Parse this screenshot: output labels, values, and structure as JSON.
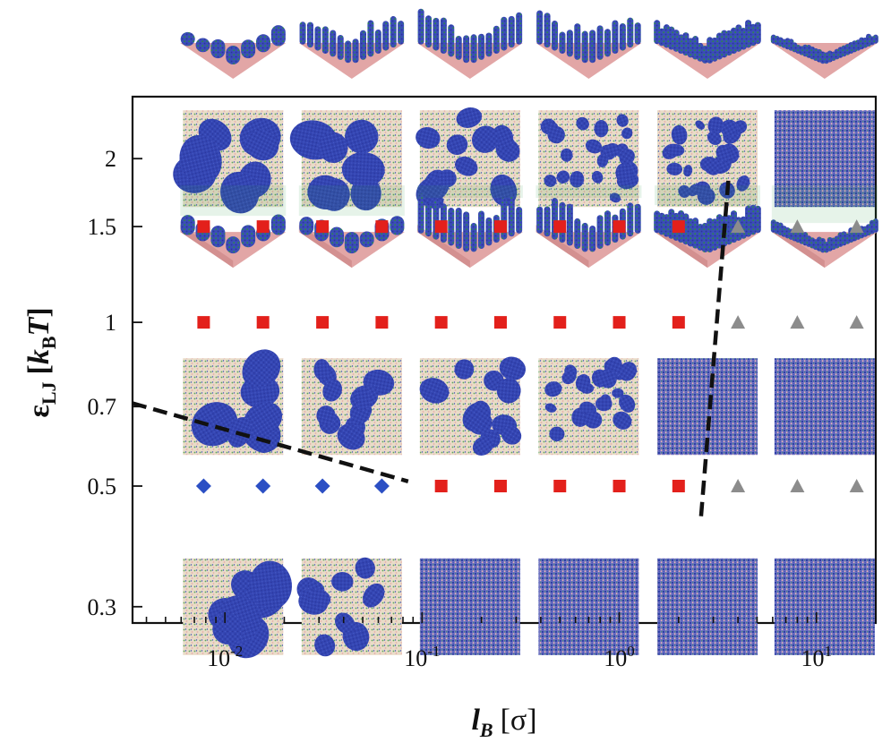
{
  "chart_data": {
    "type": "scatter",
    "title": "",
    "xlabel": "l_B [σ]",
    "xlabel_parts": {
      "main": "l",
      "sub": "B",
      "unit": "[σ]"
    },
    "ylabel": "ε_LJ [k_B T]",
    "ylabel_parts": {
      "main": "ε",
      "sub": "LJ",
      "unit_open": "[",
      "k": "k",
      "k_sub": "B",
      "T": "T",
      "unit_close": "]"
    },
    "x_scale": "log",
    "y_scale": "log",
    "xlim": [
      0.0034,
      20
    ],
    "ylim": [
      0.28,
      2.6
    ],
    "x_ticks": [
      {
        "value": 0.01,
        "base": "10",
        "exp": "-2"
      },
      {
        "value": 0.1,
        "base": "10",
        "exp": "-1"
      },
      {
        "value": 1,
        "base": "10",
        "exp": "0"
      },
      {
        "value": 10,
        "base": "10",
        "exp": "1"
      }
    ],
    "y_ticks": [
      {
        "value": 0.3,
        "label": "0.3"
      },
      {
        "value": 0.5,
        "label": "0.5"
      },
      {
        "value": 0.7,
        "label": "0.7"
      },
      {
        "value": 1,
        "label": "1"
      },
      {
        "value": 1.5,
        "label": "1.5"
      },
      {
        "value": 2,
        "label": "2"
      }
    ],
    "series": [
      {
        "marker": "diamond",
        "color": "#2b4fc4",
        "points": [
          [
            0.0078,
            0.5
          ],
          [
            0.0156,
            0.5
          ],
          [
            0.03125,
            0.5
          ],
          [
            0.0625,
            0.5
          ]
        ]
      },
      {
        "marker": "square",
        "color": "#e3201b",
        "points": [
          [
            0.0078,
            1.5
          ],
          [
            0.0156,
            1.5
          ],
          [
            0.03125,
            1.5
          ],
          [
            0.0625,
            1.5
          ],
          [
            0.125,
            1.5
          ],
          [
            0.25,
            1.5
          ],
          [
            0.5,
            1.5
          ],
          [
            1,
            1.5
          ],
          [
            2,
            1.5
          ],
          [
            0.0078,
            1
          ],
          [
            0.0156,
            1
          ],
          [
            0.03125,
            1
          ],
          [
            0.0625,
            1
          ],
          [
            0.125,
            1
          ],
          [
            0.25,
            1
          ],
          [
            0.5,
            1
          ],
          [
            1,
            1
          ],
          [
            2,
            1
          ],
          [
            0.125,
            0.5
          ],
          [
            0.25,
            0.5
          ],
          [
            0.5,
            0.5
          ],
          [
            1,
            0.5
          ],
          [
            2,
            0.5
          ]
        ]
      },
      {
        "marker": "triangle",
        "color": "#8c8c8c",
        "points": [
          [
            4,
            1.5
          ],
          [
            8,
            1.5
          ],
          [
            16,
            1.5
          ],
          [
            4,
            1
          ],
          [
            8,
            1
          ],
          [
            16,
            1
          ],
          [
            4,
            0.5
          ],
          [
            8,
            0.5
          ],
          [
            16,
            0.5
          ]
        ]
      }
    ],
    "boundaries": [
      {
        "style": "dashed",
        "color": "#111111",
        "points": [
          [
            0.0034,
            0.71
          ],
          [
            0.085,
            0.51
          ]
        ]
      },
      {
        "style": "dashed",
        "color": "#111111",
        "points": [
          [
            2.6,
            0.44
          ],
          [
            3.6,
            1.88
          ]
        ]
      }
    ],
    "snapshots": {
      "columns_x": [
        0.0078,
        0.0156,
        0.03125,
        0.0625,
        0.125,
        0.25,
        0.5,
        1,
        2,
        4,
        8,
        16
      ],
      "rows": [
        {
          "eps": 2,
          "view": "top",
          "centers": [
            0.011,
            0.044,
            0.175,
            0.7,
            2.8,
            11.0
          ],
          "pattern": [
            "large",
            "large",
            "medium",
            "small",
            "small",
            "mixed"
          ]
        },
        {
          "eps": 1.5,
          "view": "perspective",
          "centers": [
            0.011,
            0.044,
            0.175,
            0.7,
            2.8,
            11.0
          ],
          "pattern": [
            "large",
            "large",
            "pillars",
            "pillars",
            "brush",
            "flat"
          ]
        },
        {
          "eps": 0.7,
          "view": "top",
          "centers": [
            0.011,
            0.044,
            0.175,
            0.7,
            2.8,
            11.0
          ],
          "pattern": [
            "large",
            "medium",
            "medium",
            "small",
            "mixed",
            "mixed"
          ]
        },
        {
          "eps": 0.3,
          "view": "top",
          "centers": [
            0.011,
            0.044,
            0.175,
            0.7,
            2.8,
            11.0
          ],
          "pattern": [
            "large",
            "medium",
            "mixed",
            "mixed",
            "mixed",
            "mixed"
          ]
        }
      ],
      "top_strip": {
        "view": "perspective",
        "pattern": [
          "large",
          "pillars",
          "pillars",
          "pillars",
          "brush",
          "flat"
        ]
      }
    },
    "colors": {
      "polymer": "#2b3fae",
      "substrate": "#f0b8b8",
      "ions": "#3fae3f",
      "background": "#e9ddc9"
    }
  }
}
